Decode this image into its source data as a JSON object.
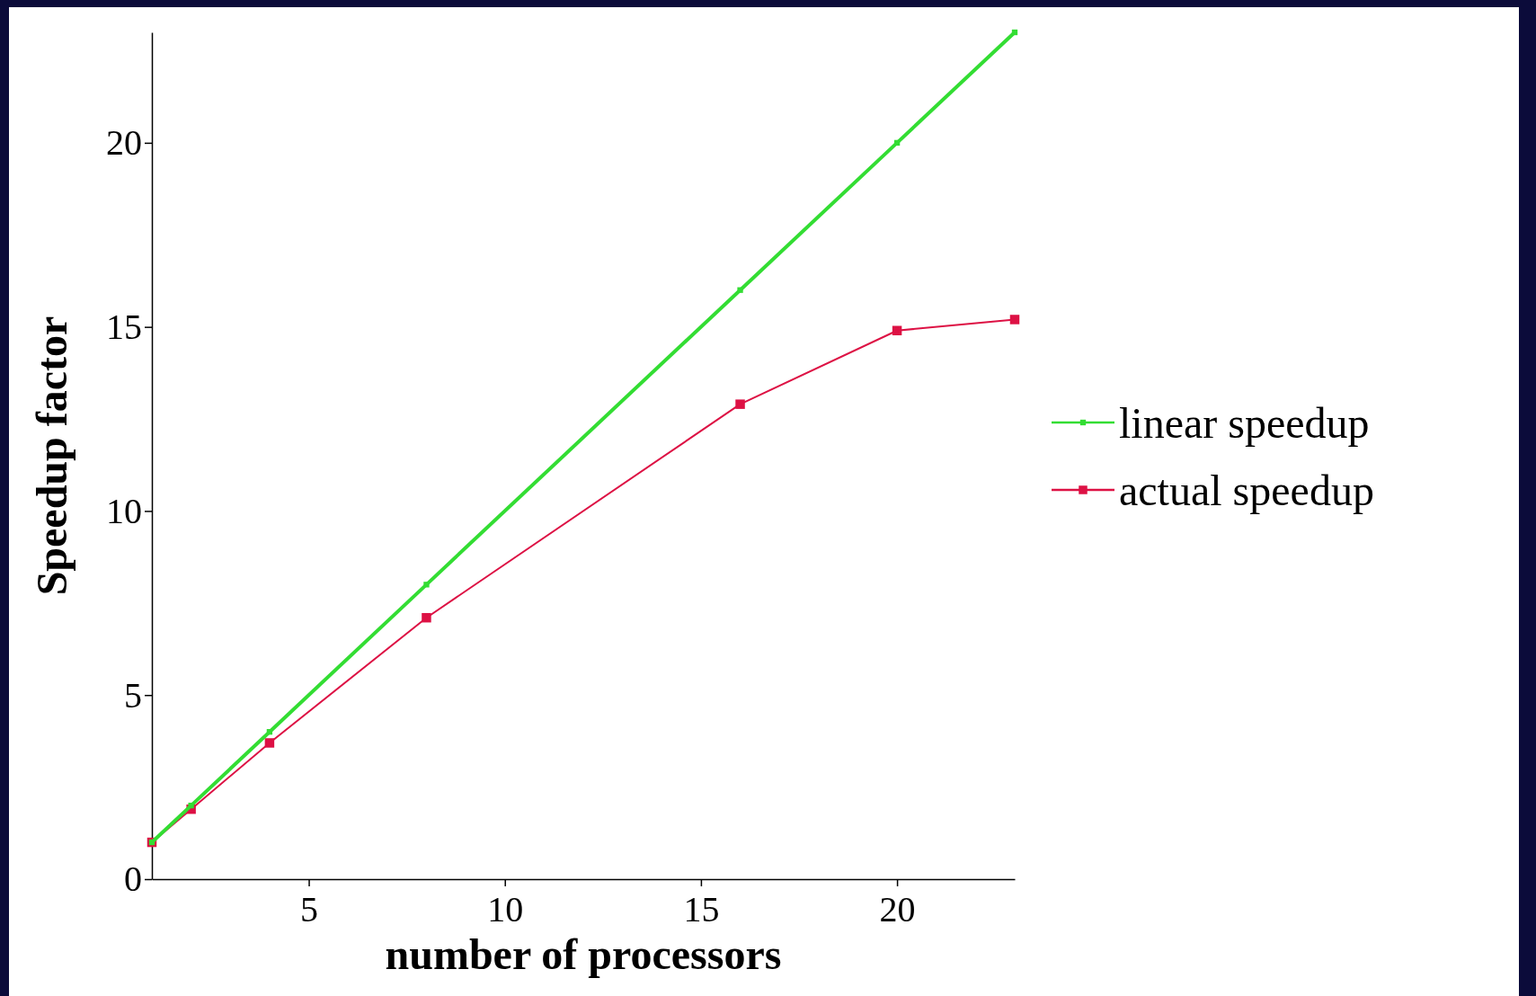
{
  "chart_data": {
    "type": "line",
    "xlabel": "number of processors",
    "ylabel": "Speedup factor",
    "x": [
      1,
      2,
      4,
      8,
      16,
      20,
      23
    ],
    "series": [
      {
        "name": "linear speedup",
        "color": "#33dd33",
        "values": [
          1,
          2,
          4,
          8,
          16,
          20,
          23
        ]
      },
      {
        "name": "actual speedup",
        "color": "#dd1144",
        "values": [
          1,
          1.9,
          3.7,
          7.1,
          12.9,
          14.9,
          15.2
        ]
      }
    ],
    "xlim": [
      1,
      23
    ],
    "xticks": [
      5,
      10,
      15,
      20
    ],
    "ylim": [
      0,
      23
    ],
    "yticks": [
      0,
      5,
      10,
      15,
      20
    ],
    "legend": "right",
    "marker": "square",
    "line_style": "solid",
    "grid": false
  }
}
